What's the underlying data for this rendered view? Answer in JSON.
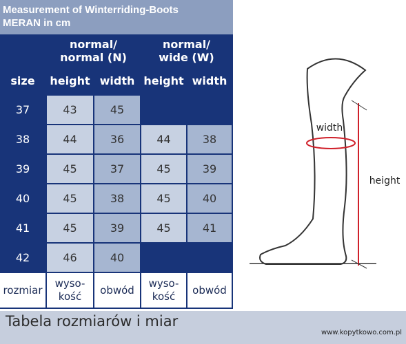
{
  "header": {
    "title": [
      "Measurement of Winterriding-Boots",
      "MERAN in cm"
    ]
  },
  "table": {
    "groups": [
      [
        "normal/",
        "normal (N)"
      ],
      [
        "normal/",
        "wide (W)"
      ]
    ],
    "columns": [
      "size",
      "height",
      "width",
      "height",
      "width"
    ],
    "rows": [
      [
        37,
        43,
        45
      ],
      [
        38,
        44,
        36,
        44,
        38
      ],
      [
        39,
        45,
        37,
        45,
        39
      ],
      [
        40,
        45,
        38,
        45,
        40
      ],
      [
        41,
        45,
        39,
        45,
        41
      ],
      [
        42,
        46,
        40
      ]
    ],
    "footer": [
      [
        "rozmiar"
      ],
      [
        "wyso-",
        "kość"
      ],
      [
        "obwód"
      ],
      [
        "wyso-",
        "kość"
      ],
      [
        "obwód"
      ]
    ]
  },
  "diagram": {
    "width_label": "width",
    "height_label": "height"
  },
  "bottom": {
    "caption": "Tabela rozmiarów i miar",
    "url": "www.kopytkowo.com.pl"
  }
}
